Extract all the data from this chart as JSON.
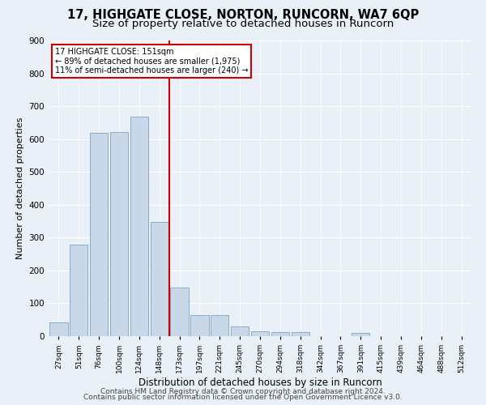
{
  "title1": "17, HIGHGATE CLOSE, NORTON, RUNCORN, WA7 6QP",
  "title2": "Size of property relative to detached houses in Runcorn",
  "xlabel": "Distribution of detached houses by size in Runcorn",
  "ylabel": "Number of detached properties",
  "footer1": "Contains HM Land Registry data © Crown copyright and database right 2024.",
  "footer2": "Contains public sector information licensed under the Open Government Licence v3.0.",
  "bar_labels": [
    "27sqm",
    "51sqm",
    "76sqm",
    "100sqm",
    "124sqm",
    "148sqm",
    "173sqm",
    "197sqm",
    "221sqm",
    "245sqm",
    "270sqm",
    "294sqm",
    "318sqm",
    "342sqm",
    "367sqm",
    "391sqm",
    "415sqm",
    "439sqm",
    "464sqm",
    "488sqm",
    "512sqm"
  ],
  "bar_values": [
    42,
    278,
    620,
    622,
    668,
    348,
    148,
    65,
    65,
    30,
    16,
    12,
    12,
    0,
    0,
    10,
    0,
    0,
    0,
    0,
    0
  ],
  "bar_color": "#c8d8e8",
  "bar_edge_color": "#8aabcc",
  "vline_x": 5.5,
  "annotation_line1": "17 HIGHGATE CLOSE: 151sqm",
  "annotation_line2": "← 89% of detached houses are smaller (1,975)",
  "annotation_line3": "11% of semi-detached houses are larger (240) →",
  "ylim": [
    0,
    900
  ],
  "yticks": [
    0,
    100,
    200,
    300,
    400,
    500,
    600,
    700,
    800,
    900
  ],
  "bg_color": "#eaf0f8",
  "plot_bg_color": "#eaf0f8",
  "grid_color": "#ffffff",
  "vline_color": "#cc0000",
  "title1_fontsize": 10.5,
  "title2_fontsize": 9.5,
  "xlabel_fontsize": 8.5,
  "ylabel_fontsize": 8,
  "footer_fontsize": 6.5
}
